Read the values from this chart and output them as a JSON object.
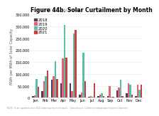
{
  "title": "Figure 44b. Solar Curtailment by Month",
  "subtitle": "2016-2021 ISO, CALIFORNIA",
  "ylabel": "MWh per MWh of Solar Capacity",
  "xlabel_months": [
    "Jan",
    "Feb",
    "Mar",
    "Apr",
    "May",
    "Jun",
    "Jul",
    "Aug",
    "Sep",
    "Oct",
    "Nov",
    "Dec"
  ],
  "legend_labels": [
    "2018",
    "2019",
    "2020",
    "2021"
  ],
  "bar_colors": [
    "#4a3f5c",
    "#e8616e",
    "#5bbfad",
    "#c94040"
  ],
  "ylim": [
    0,
    350000
  ],
  "yticks": [
    0,
    50000,
    100000,
    150000,
    200000,
    250000,
    300000,
    350000
  ],
  "data": {
    "2018": [
      8000,
      28000,
      75000,
      60000,
      60000,
      12000,
      4000,
      8000,
      8000,
      32000,
      18000,
      6000
    ],
    "2019": [
      10000,
      70000,
      90000,
      165000,
      28000,
      22000,
      8000,
      13000,
      50000,
      42000,
      62000,
      55000
    ],
    "2020": [
      80000,
      90000,
      155000,
      305000,
      270000,
      190000,
      4000,
      18000,
      4000,
      75000,
      55000,
      35000
    ],
    "2021": [
      45000,
      115000,
      80000,
      170000,
      285000,
      70000,
      60000,
      8000,
      4000,
      8000,
      12000,
      55000
    ]
  },
  "background_color": "#ffffff",
  "grid_color": "#e8e8e8",
  "title_fontsize": 5.5,
  "subtitle_fontsize": 3.8,
  "axis_fontsize": 3.5,
  "tick_fontsize": 3.5,
  "legend_fontsize": 3.8,
  "footer_fontsize": 2.2
}
